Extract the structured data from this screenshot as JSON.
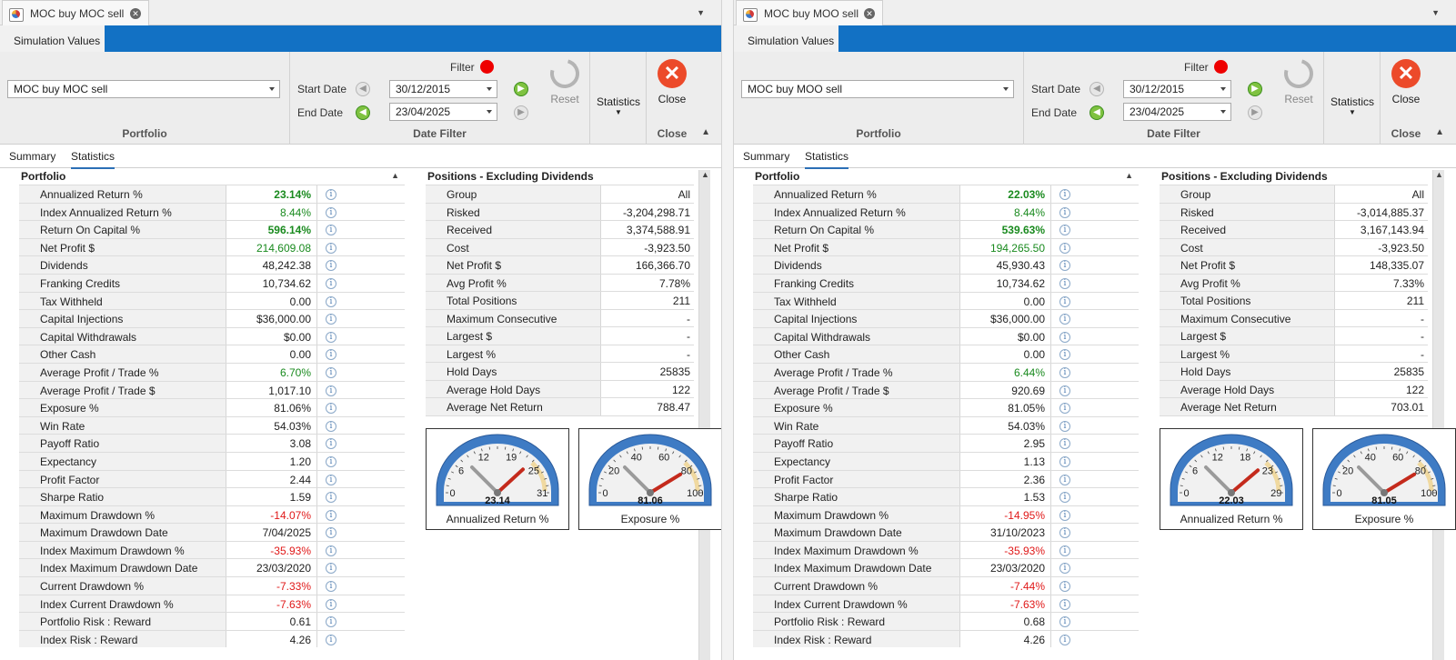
{
  "panels": [
    {
      "doc_tab": "MOC buy MOC sell",
      "ribbon_tab": "Simulation Values",
      "portfolio_select": "MOC buy MOC sell",
      "group_portfolio": "Portfolio",
      "filter_label": "Filter",
      "start_label": "Start Date",
      "start_date": "30/12/2015",
      "end_label": "End Date",
      "end_date": "23/04/2025",
      "group_date": "Date Filter",
      "reset_label": "Reset",
      "statistics_label": "Statistics",
      "close_label": "Close",
      "group_close": "Close",
      "tabs": [
        "Summary",
        "Statistics"
      ],
      "section_title": "Portfolio",
      "stats": [
        {
          "label": "Annualized Return %",
          "value": "23.14%",
          "style": "green bold"
        },
        {
          "label": "Index Annualized Return %",
          "value": "8.44%",
          "style": "green"
        },
        {
          "label": "Return On Capital %",
          "value": "596.14%",
          "style": "green bold"
        },
        {
          "label": "Net Profit $",
          "value": "214,609.08",
          "style": "green"
        },
        {
          "label": "Dividends",
          "value": "48,242.38",
          "style": ""
        },
        {
          "label": "Franking Credits",
          "value": "10,734.62",
          "style": ""
        },
        {
          "label": "Tax Withheld",
          "value": "0.00",
          "style": ""
        },
        {
          "label": "Capital Injections",
          "value": "$36,000.00",
          "style": ""
        },
        {
          "label": "Capital Withdrawals",
          "value": "$0.00",
          "style": ""
        },
        {
          "label": "Other Cash",
          "value": "0.00",
          "style": ""
        },
        {
          "label": "Average Profit / Trade %",
          "value": "6.70%",
          "style": "green"
        },
        {
          "label": "Average Profit / Trade $",
          "value": "1,017.10",
          "style": ""
        },
        {
          "label": "Exposure %",
          "value": "81.06%",
          "style": ""
        },
        {
          "label": "Win Rate",
          "value": "54.03%",
          "style": ""
        },
        {
          "label": "Payoff Ratio",
          "value": "3.08",
          "style": ""
        },
        {
          "label": "Expectancy",
          "value": "1.20",
          "style": ""
        },
        {
          "label": "Profit Factor",
          "value": "2.44",
          "style": ""
        },
        {
          "label": "Sharpe Ratio",
          "value": "1.59",
          "style": ""
        },
        {
          "label": "Maximum Drawdown %",
          "value": "-14.07%",
          "style": "red"
        },
        {
          "label": "Maximum Drawdown Date",
          "value": "7/04/2025",
          "style": ""
        },
        {
          "label": "Index Maximum Drawdown %",
          "value": "-35.93%",
          "style": "red"
        },
        {
          "label": "Index Maximum Drawdown Date",
          "value": "23/03/2020",
          "style": ""
        },
        {
          "label": "Current Drawdown %",
          "value": "-7.33%",
          "style": "red"
        },
        {
          "label": "Index Current Drawdown %",
          "value": "-7.63%",
          "style": "red"
        },
        {
          "label": "Portfolio Risk : Reward",
          "value": "0.61",
          "style": ""
        },
        {
          "label": "Index Risk : Reward",
          "value": "4.26",
          "style": ""
        }
      ],
      "positions_title": "Positions - Excluding Dividends",
      "positions": [
        {
          "label": "Group",
          "value": "All"
        },
        {
          "label": "Risked",
          "value": "-3,204,298.71"
        },
        {
          "label": "Received",
          "value": "3,374,588.91"
        },
        {
          "label": "Cost",
          "value": "-3,923.50"
        },
        {
          "label": "Net Profit $",
          "value": "166,366.70"
        },
        {
          "label": "Avg Profit %",
          "value": "7.78%"
        },
        {
          "label": "Total Positions",
          "value": "211"
        },
        {
          "label": "Maximum Consecutive",
          "value": "-"
        },
        {
          "label": "Largest $",
          "value": "-"
        },
        {
          "label": "Largest %",
          "value": "-"
        },
        {
          "label": "Hold Days",
          "value": "25835"
        },
        {
          "label": "Average Hold Days",
          "value": "122"
        },
        {
          "label": "Average Net Return",
          "value": "788.47"
        }
      ],
      "gauges": [
        {
          "label": "Annualized Return %",
          "value": 23.14,
          "display": "23.14",
          "ticks": [
            "0",
            "6",
            "12",
            "19",
            "25",
            "31"
          ],
          "min": 0,
          "max": 31
        },
        {
          "label": "Exposure %",
          "value": 81.06,
          "display": "81.06",
          "ticks": [
            "0",
            "20",
            "40",
            "60",
            "80",
            "100"
          ],
          "min": 0,
          "max": 100
        }
      ]
    },
    {
      "doc_tab": "MOC buy MOO sell",
      "ribbon_tab": "Simulation Values",
      "portfolio_select": "MOC buy MOO sell",
      "group_portfolio": "Portfolio",
      "filter_label": "Filter",
      "start_label": "Start Date",
      "start_date": "30/12/2015",
      "end_label": "End Date",
      "end_date": "23/04/2025",
      "group_date": "Date Filter",
      "reset_label": "Reset",
      "statistics_label": "Statistics",
      "close_label": "Close",
      "group_close": "Close",
      "tabs": [
        "Summary",
        "Statistics"
      ],
      "section_title": "Portfolio",
      "stats": [
        {
          "label": "Annualized Return %",
          "value": "22.03%",
          "style": "green bold"
        },
        {
          "label": "Index Annualized Return %",
          "value": "8.44%",
          "style": "green"
        },
        {
          "label": "Return On Capital %",
          "value": "539.63%",
          "style": "green bold"
        },
        {
          "label": "Net Profit $",
          "value": "194,265.50",
          "style": "green"
        },
        {
          "label": "Dividends",
          "value": "45,930.43",
          "style": ""
        },
        {
          "label": "Franking Credits",
          "value": "10,734.62",
          "style": ""
        },
        {
          "label": "Tax Withheld",
          "value": "0.00",
          "style": ""
        },
        {
          "label": "Capital Injections",
          "value": "$36,000.00",
          "style": ""
        },
        {
          "label": "Capital Withdrawals",
          "value": "$0.00",
          "style": ""
        },
        {
          "label": "Other Cash",
          "value": "0.00",
          "style": ""
        },
        {
          "label": "Average Profit / Trade %",
          "value": "6.44%",
          "style": "green"
        },
        {
          "label": "Average Profit / Trade $",
          "value": "920.69",
          "style": ""
        },
        {
          "label": "Exposure %",
          "value": "81.05%",
          "style": ""
        },
        {
          "label": "Win Rate",
          "value": "54.03%",
          "style": ""
        },
        {
          "label": "Payoff Ratio",
          "value": "2.95",
          "style": ""
        },
        {
          "label": "Expectancy",
          "value": "1.13",
          "style": ""
        },
        {
          "label": "Profit Factor",
          "value": "2.36",
          "style": ""
        },
        {
          "label": "Sharpe Ratio",
          "value": "1.53",
          "style": ""
        },
        {
          "label": "Maximum Drawdown %",
          "value": "-14.95%",
          "style": "red"
        },
        {
          "label": "Maximum Drawdown Date",
          "value": "31/10/2023",
          "style": ""
        },
        {
          "label": "Index Maximum Drawdown %",
          "value": "-35.93%",
          "style": "red"
        },
        {
          "label": "Index Maximum Drawdown Date",
          "value": "23/03/2020",
          "style": ""
        },
        {
          "label": "Current Drawdown %",
          "value": "-7.44%",
          "style": "red"
        },
        {
          "label": "Index Current Drawdown %",
          "value": "-7.63%",
          "style": "red"
        },
        {
          "label": "Portfolio Risk : Reward",
          "value": "0.68",
          "style": ""
        },
        {
          "label": "Index Risk : Reward",
          "value": "4.26",
          "style": ""
        }
      ],
      "positions_title": "Positions - Excluding Dividends",
      "positions": [
        {
          "label": "Group",
          "value": "All"
        },
        {
          "label": "Risked",
          "value": "-3,014,885.37"
        },
        {
          "label": "Received",
          "value": "3,167,143.94"
        },
        {
          "label": "Cost",
          "value": "-3,923.50"
        },
        {
          "label": "Net Profit $",
          "value": "148,335.07"
        },
        {
          "label": "Avg Profit %",
          "value": "7.33%"
        },
        {
          "label": "Total Positions",
          "value": "211"
        },
        {
          "label": "Maximum Consecutive",
          "value": "-"
        },
        {
          "label": "Largest $",
          "value": "-"
        },
        {
          "label": "Largest %",
          "value": "-"
        },
        {
          "label": "Hold Days",
          "value": "25835"
        },
        {
          "label": "Average Hold Days",
          "value": "122"
        },
        {
          "label": "Average Net Return",
          "value": "703.01"
        }
      ],
      "gauges": [
        {
          "label": "Annualized Return %",
          "value": 22.03,
          "display": "22.03",
          "ticks": [
            "0",
            "6",
            "12",
            "18",
            "23",
            "29"
          ],
          "min": 0,
          "max": 29
        },
        {
          "label": "Exposure %",
          "value": 81.05,
          "display": "81.05",
          "ticks": [
            "0",
            "20",
            "40",
            "60",
            "80",
            "100"
          ],
          "min": 0,
          "max": 100
        }
      ]
    }
  ],
  "colors": {
    "accent": "#1271c4",
    "positive": "#198a1e",
    "negative": "#e01818",
    "filter_dot": "#ee0000",
    "close": "#ec4a2a"
  },
  "icons": {
    "tab_close": "close-circle-icon",
    "info": "info-icon",
    "date_prev": "arrow-left-icon",
    "date_next": "arrow-right-icon",
    "reset": "refresh-icon",
    "close": "close-x-icon"
  }
}
